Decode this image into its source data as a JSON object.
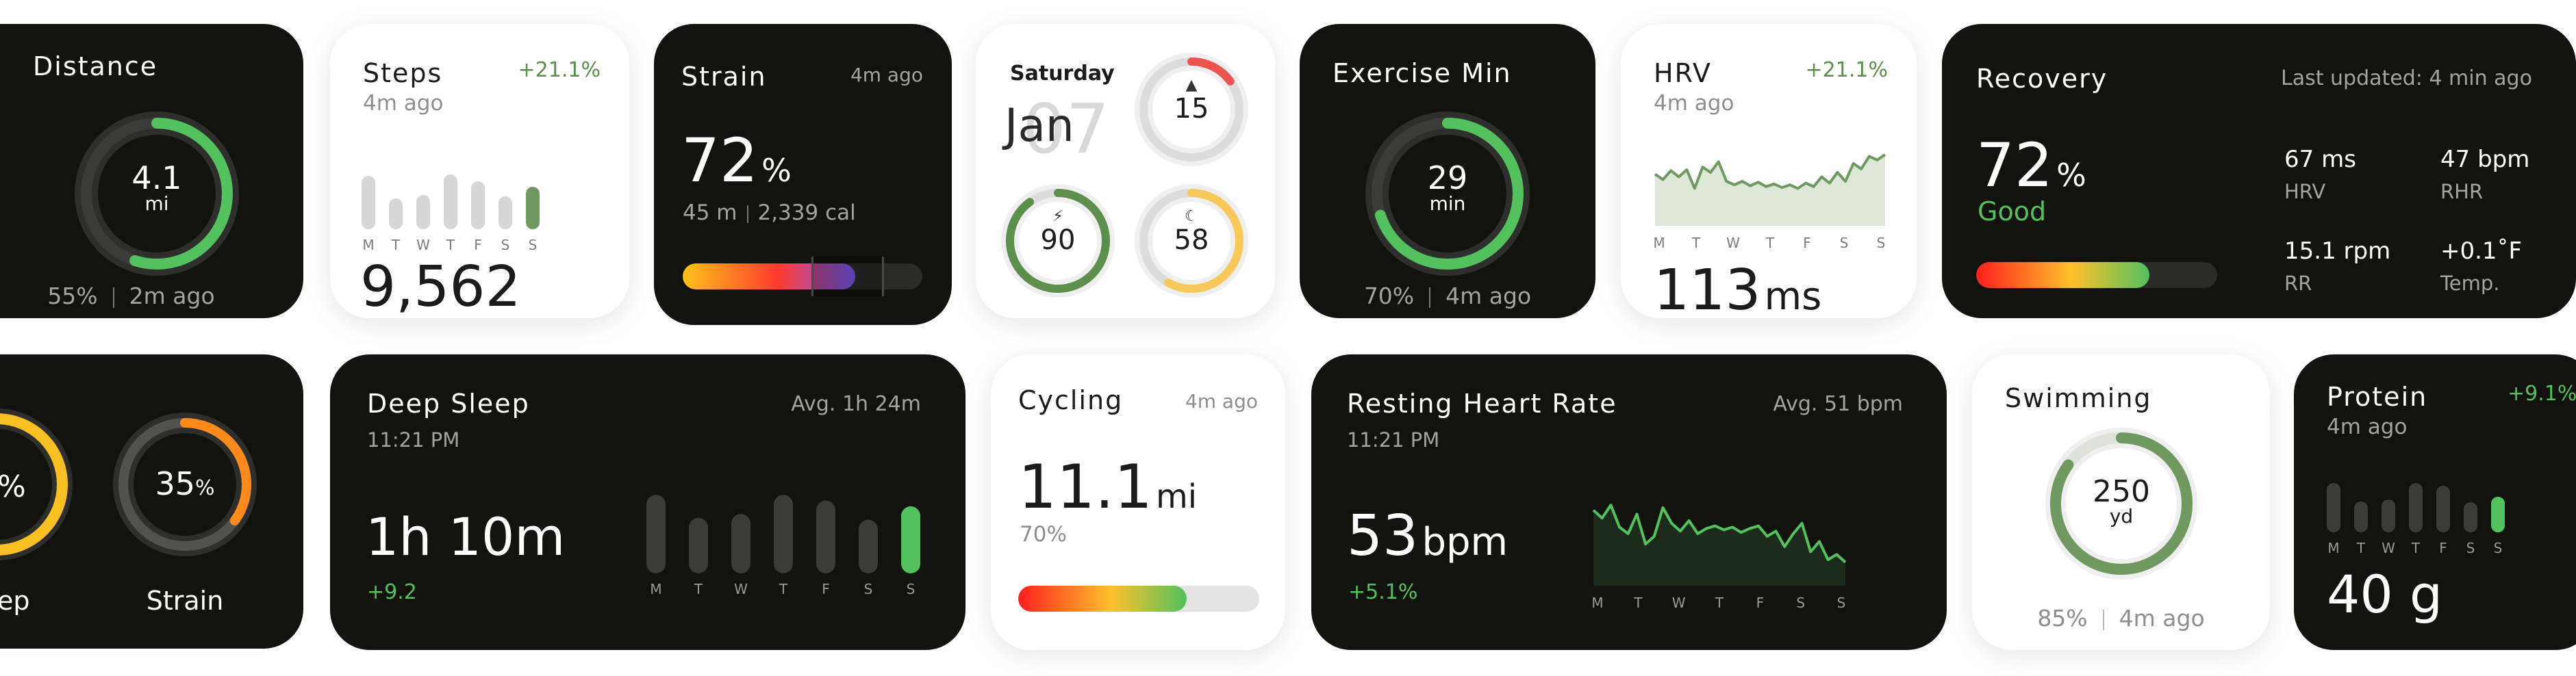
{
  "distance": {
    "title": "Distance",
    "value": "4.1",
    "unit": "mi",
    "percent": "55%",
    "updated": "2m ago",
    "progress": 0.55
  },
  "steps": {
    "title": "Steps",
    "change": "+21.1%",
    "updated": "4m ago",
    "value": "9,562",
    "days": [
      "M",
      "T",
      "W",
      "T",
      "F",
      "S",
      "S"
    ],
    "bars": [
      0.78,
      0.45,
      0.5,
      0.8,
      0.7,
      0.48,
      0.62
    ]
  },
  "strain_top": {
    "title": "Strain",
    "updated": "4m ago",
    "value": "72",
    "unit": "%",
    "detail_a": "45 m",
    "detail_b": "2,339 cal",
    "level": 0.72
  },
  "summary": {
    "day": "Saturday",
    "month": "Jan",
    "date": "07",
    "ring_a": "15",
    "ring_b": "90",
    "ring_c": "58",
    "fire_icon": "flame-icon",
    "bolt_icon": "bolt-icon",
    "moon_icon": "moon-icon",
    "ring_a_level": 0.15,
    "ring_b_level": 0.9,
    "ring_c_level": 0.58,
    "colors": {
      "red": "#ef5350",
      "green": "#5b8f4b",
      "yellow": "#f8c95a"
    }
  },
  "exercise": {
    "title": "Exercise Min",
    "value": "29",
    "unit": "min",
    "percent": "70%",
    "updated": "4m ago",
    "progress": 0.7
  },
  "hrv_top": {
    "title": "HRV",
    "change": "+21.1%",
    "updated": "4m ago",
    "value": "113",
    "unit": "ms",
    "days": [
      "M",
      "T",
      "W",
      "T",
      "F",
      "S",
      "S"
    ],
    "line": [
      58,
      52,
      62,
      55,
      63,
      42,
      66,
      60,
      72,
      50,
      46,
      50,
      45,
      49,
      44,
      47,
      43,
      46,
      42,
      48,
      44,
      55,
      48,
      60,
      50,
      70,
      64,
      78,
      74,
      80
    ]
  },
  "recovery": {
    "title": "Recovery",
    "updated": "Last updated: 4 min ago",
    "value": "72",
    "unit": "%",
    "status": "Good",
    "level": 0.72,
    "stats": [
      {
        "value": "67 ms",
        "label": "HRV"
      },
      {
        "value": "47 bpm",
        "label": "RHR"
      },
      {
        "value": "15.1 rpm",
        "label": "RR"
      },
      {
        "value": "+0.1˚F",
        "label": "Temp."
      }
    ]
  },
  "rings_partial": {
    "left_value": "%",
    "left_label": "ep",
    "right_value": "35",
    "right_unit": "%",
    "right_label": "Strain",
    "right_level": 0.35
  },
  "deep_sleep": {
    "title": "Deep Sleep",
    "average": "Avg. 1h 24m",
    "time": "11:21 PM",
    "value": "1h 10m",
    "change": "+9.2",
    "days": [
      "M",
      "T",
      "W",
      "T",
      "F",
      "S",
      "S"
    ],
    "bars": [
      0.82,
      0.58,
      0.62,
      0.82,
      0.76,
      0.56,
      0.7
    ]
  },
  "cycling": {
    "title": "Cycling",
    "updated": "4m ago",
    "value": "11.1",
    "unit": "mi",
    "percent": "70%",
    "level": 0.7
  },
  "rhr": {
    "title": "Resting Heart Rate",
    "average": "Avg. 51 bpm",
    "time": "11:21 PM",
    "value": "53",
    "unit": "bpm",
    "change": "+5.1%",
    "days": [
      "M",
      "T",
      "W",
      "T",
      "F",
      "S",
      "S"
    ],
    "line": [
      58,
      52,
      62,
      45,
      40,
      55,
      32,
      38,
      60,
      48,
      42,
      50,
      40,
      44,
      46,
      43,
      45,
      41,
      44,
      46,
      38,
      42,
      30,
      40,
      48,
      26,
      34,
      20,
      24,
      18
    ]
  },
  "swimming": {
    "title": "Swimming",
    "value": "250",
    "unit": "yd",
    "percent": "85%",
    "updated": "4m ago",
    "progress": 0.85
  },
  "protein": {
    "title": "Protein",
    "change": "+9.1%",
    "updated": "4m ago",
    "value": "40 g",
    "days": [
      "M",
      "T",
      "W",
      "T",
      "F",
      "S",
      "S"
    ],
    "bars": [
      0.72,
      0.45,
      0.48,
      0.72,
      0.68,
      0.44,
      0.52
    ]
  }
}
